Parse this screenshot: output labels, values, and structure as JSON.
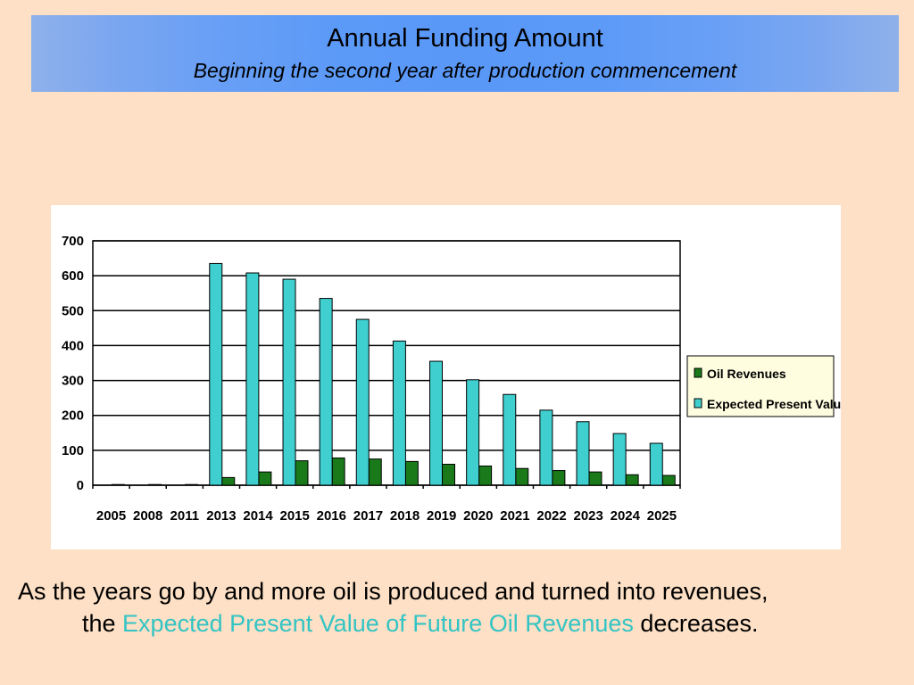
{
  "title": {
    "main": "Annual Funding Amount",
    "sub": "Beginning the second year after production commencement"
  },
  "chart_data": {
    "type": "bar",
    "categories": [
      "2005",
      "2008",
      "2011",
      "2013",
      "2014",
      "2015",
      "2016",
      "2017",
      "2018",
      "2019",
      "2020",
      "2021",
      "2022",
      "2023",
      "2024",
      "2025"
    ],
    "series": [
      {
        "name": "Oil Revenues",
        "color": "#1a7a1a",
        "values": [
          2,
          2,
          2,
          22,
          38,
          70,
          78,
          75,
          68,
          60,
          55,
          48,
          42,
          38,
          30,
          28
        ]
      },
      {
        "name": "Expected Present Value",
        "color": "#3fcfcf",
        "values": [
          0,
          0,
          0,
          635,
          608,
          590,
          535,
          475,
          413,
          355,
          302,
          260,
          215,
          182,
          148,
          120
        ]
      }
    ],
    "ylim": [
      0,
      700
    ],
    "yticks": [
      0,
      100,
      200,
      300,
      400,
      500,
      600,
      700
    ],
    "grid": true,
    "legend": "right"
  },
  "caption": {
    "before": "As the years go by and more oil is produced and turned into revenues,",
    "line2_prefix": "the ",
    "highlight": "Expected Present Value of Future Oil Revenues",
    "after": " decreases."
  }
}
